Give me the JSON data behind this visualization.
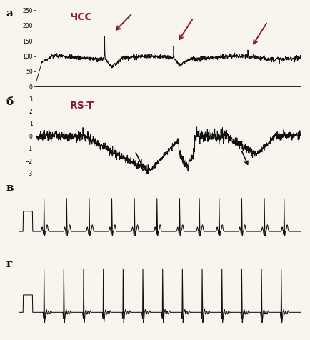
{
  "title_a": "а",
  "title_b": "б",
  "title_c": "в",
  "title_d": "г",
  "label_a": "ЧСС",
  "label_b": "RS-T",
  "label_color": "#8B1A2F",
  "bg_color": "#F8F5EE",
  "line_color": "#111111",
  "arrow_color": "#8B1A2F",
  "ylim_a": [
    0,
    250
  ],
  "yticks_a": [
    0,
    50,
    100,
    150,
    200,
    250
  ],
  "ylim_b": [
    -3,
    3
  ],
  "yticks_b": [
    -3,
    -2,
    -1,
    0,
    1,
    2,
    3
  ]
}
